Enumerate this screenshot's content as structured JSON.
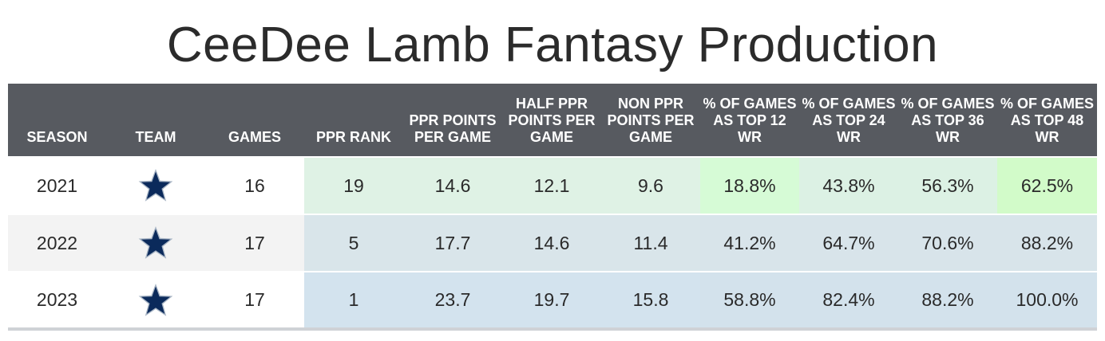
{
  "title": "CeeDee Lamb Fantasy Production",
  "chart_data": {
    "type": "table",
    "title": "CeeDee Lamb Fantasy Production",
    "columns": [
      "SEASON",
      "TEAM",
      "GAMES",
      "PPR RANK",
      "PPR POINTS PER GAME",
      "HALF PPR POINTS PER GAME",
      "NON PPR POINTS PER GAME",
      "% OF GAMES AS TOP 12 WR",
      "% OF GAMES AS TOP 24 WR",
      "% OF GAMES AS TOP 36 WR",
      "% OF GAMES AS TOP 48 WR"
    ],
    "rows": [
      {
        "season": "2021",
        "team_icon": "dallas-cowboys-star-icon",
        "games": "16",
        "ppr_rank": "19",
        "ppr_ppg": "14.6",
        "half_ppr_ppg": "12.1",
        "non_ppr_ppg": "9.6",
        "top12": "18.8%",
        "top24": "43.8%",
        "top36": "56.3%",
        "top48": "62.5%"
      },
      {
        "season": "2022",
        "team_icon": "dallas-cowboys-star-icon",
        "games": "17",
        "ppr_rank": "5",
        "ppr_ppg": "17.7",
        "half_ppr_ppg": "14.6",
        "non_ppr_ppg": "11.4",
        "top12": "41.2%",
        "top24": "64.7%",
        "top36": "70.6%",
        "top48": "88.2%"
      },
      {
        "season": "2023",
        "team_icon": "dallas-cowboys-star-icon",
        "games": "17",
        "ppr_rank": "1",
        "ppr_ppg": "23.7",
        "half_ppr_ppg": "19.7",
        "non_ppr_ppg": "15.8",
        "top12": "58.8%",
        "top24": "82.4%",
        "top36": "88.2%",
        "top48": "100.0%"
      }
    ],
    "cell_colors": [
      [
        "#dff2e5",
        "#dff2e5",
        "#dff2e5",
        "#dff2e5",
        "#d6fbd6",
        "#dcf1e4",
        "#dcf1e4",
        "#d2fbc9"
      ],
      [
        "#d9e5ea",
        "#d9e5ea",
        "#d9e5ea",
        "#d9e5ea",
        "#d8e4ea",
        "#d8e4ea",
        "#d8e4ea",
        "#d8e4ea"
      ],
      [
        "#d3e3ee",
        "#d3e3ee",
        "#d3e3ee",
        "#d3e3ee",
        "#d3e2ec",
        "#d3e2ec",
        "#d3e2ec",
        "#d3e2ec"
      ]
    ],
    "colors": {
      "header_bg": "#575a60",
      "header_text": "#ffffff",
      "star": "#0b2a5b",
      "star_outline": "#a7b4c4"
    }
  }
}
